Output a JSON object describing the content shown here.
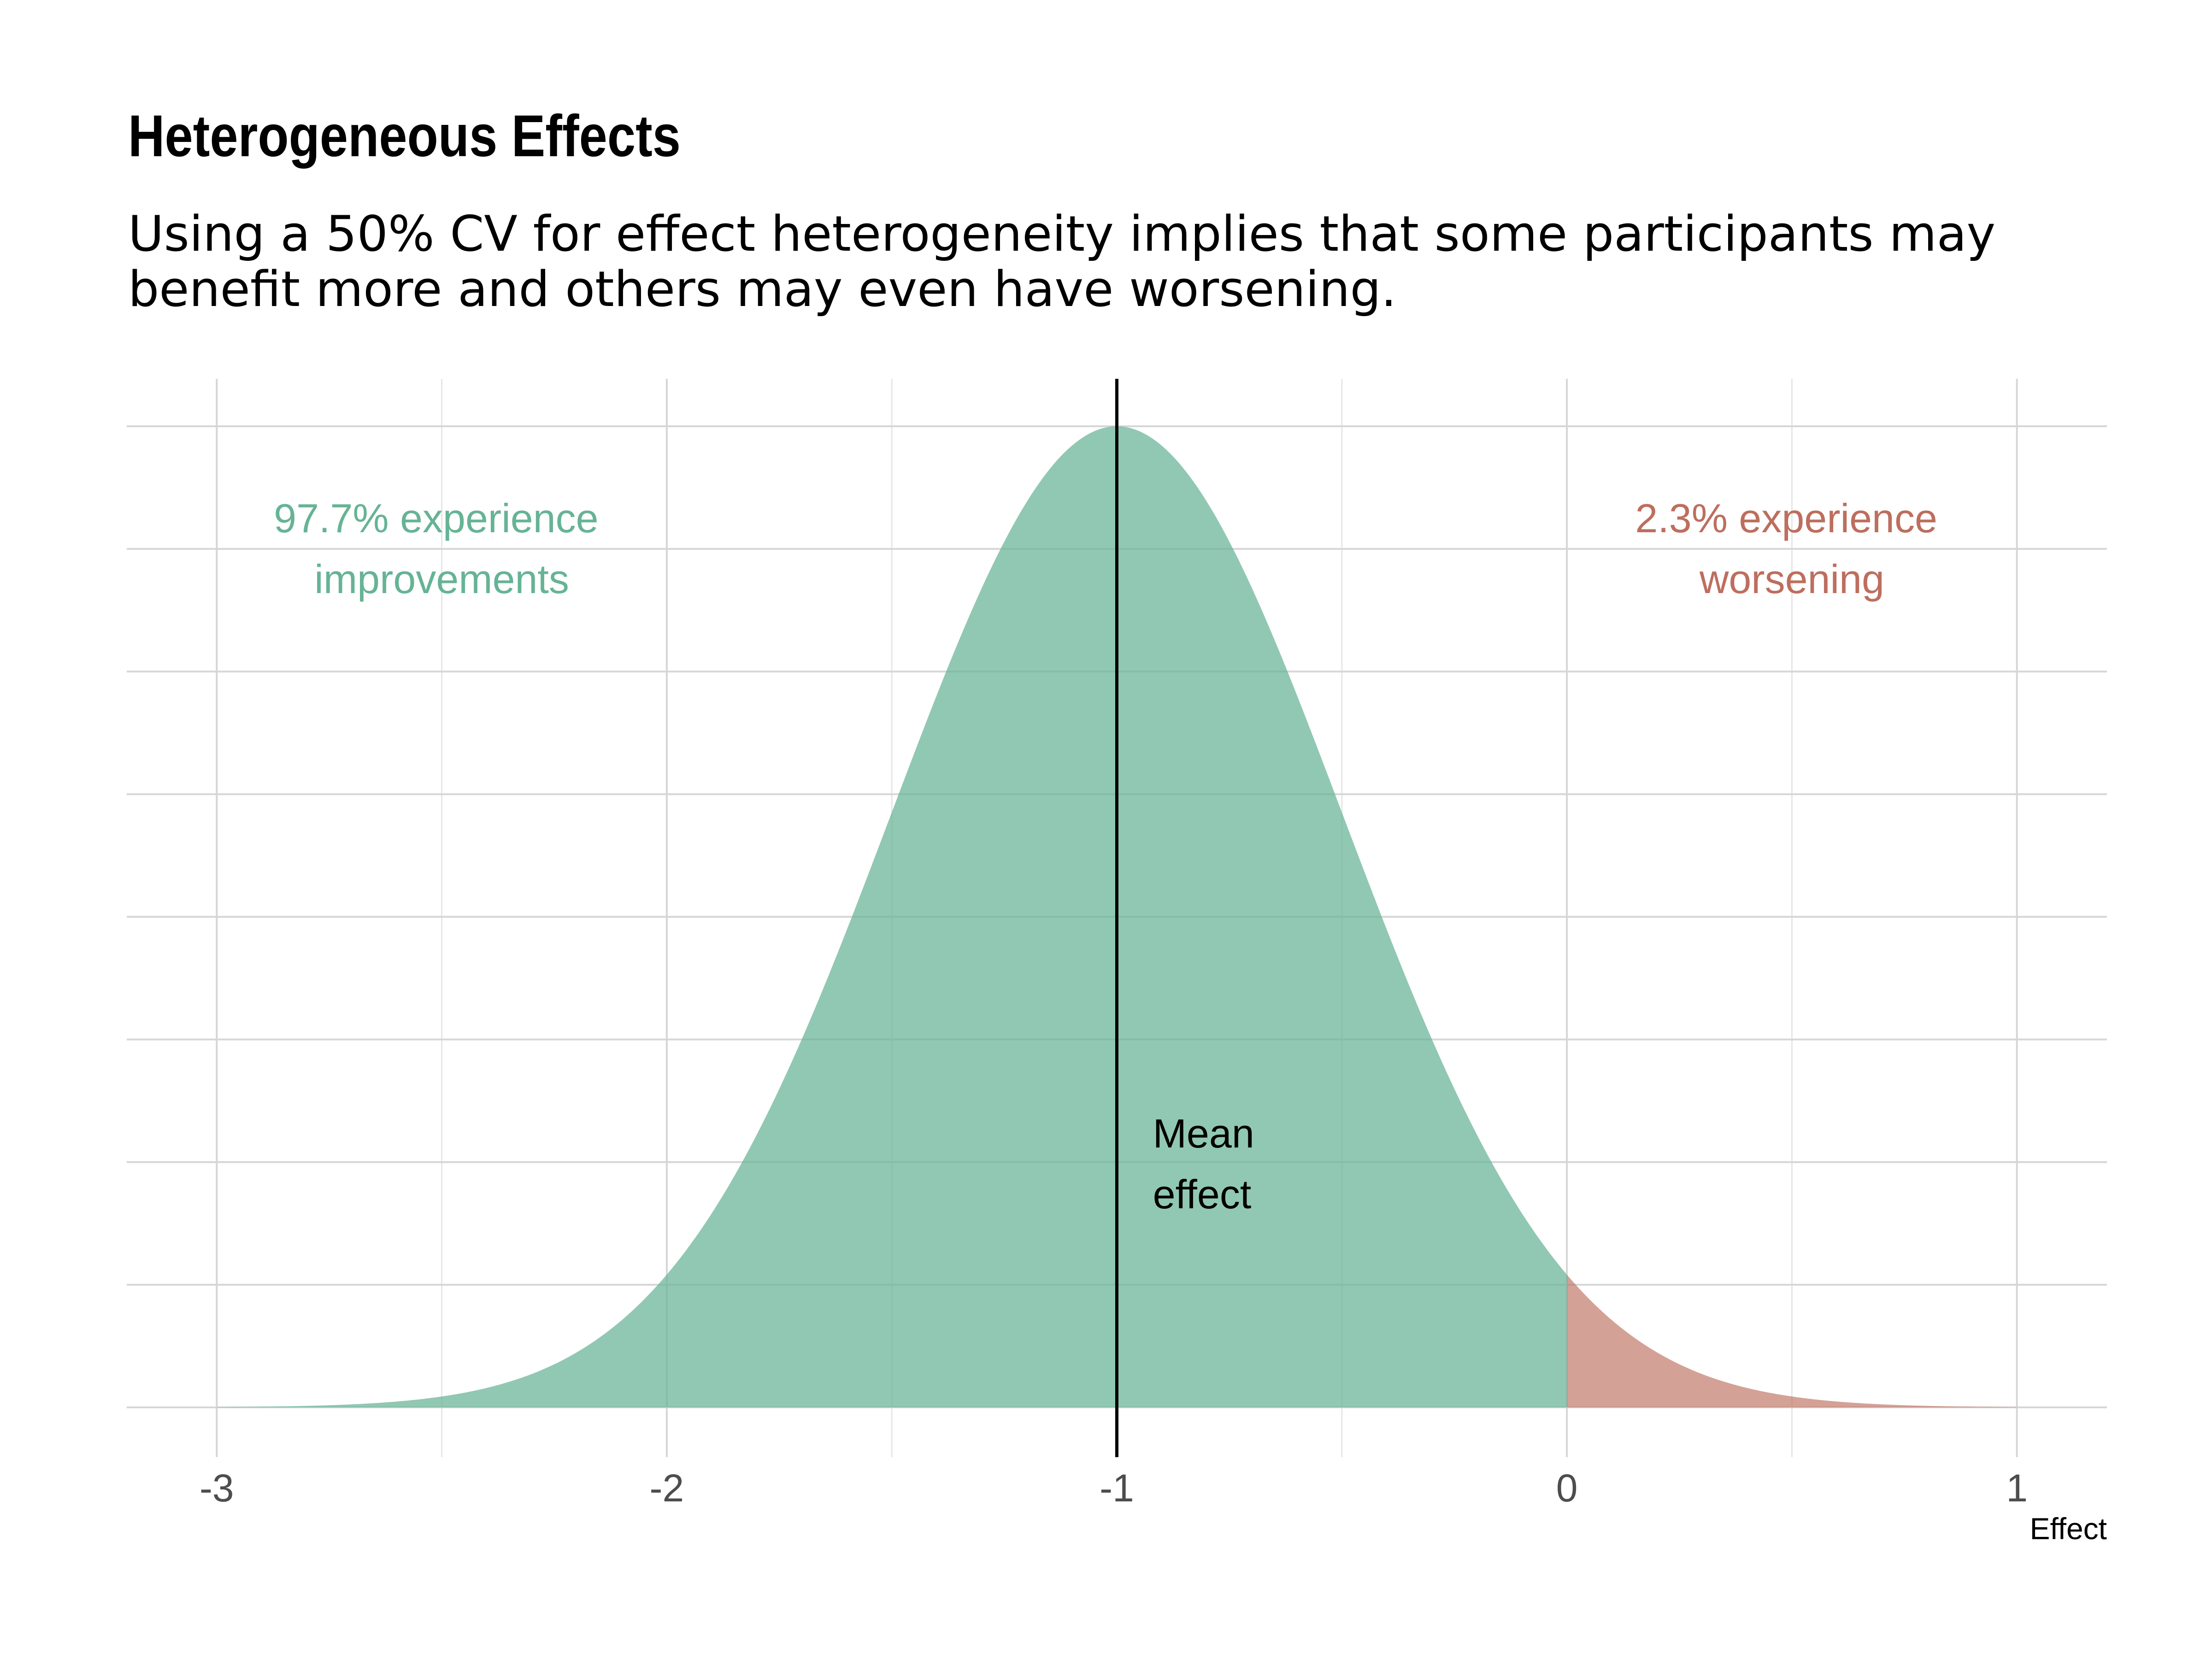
{
  "title": "Heterogeneous Effects",
  "subtitle": "Using a 50% CV for effect heterogeneity implies that some participants may benefit more and others may even have worsening.",
  "chart_data": {
    "type": "area",
    "distribution": "normal",
    "mean": -1,
    "sd": 0.5,
    "xlim": [
      -3.2,
      1.2
    ],
    "x_ticks": [
      -3,
      -2,
      -1,
      0,
      1
    ],
    "x_tick_labels": [
      "-3",
      "-2",
      "-1",
      "0",
      "1"
    ],
    "xlabel": "Effect",
    "ylabel": "",
    "y_tick_labels_shown": false,
    "grid": true,
    "series": [
      {
        "name": "improvements",
        "x_range": [
          -3,
          0
        ],
        "share_percent": 97.7,
        "color": "#66b395"
      },
      {
        "name": "worsening",
        "x_range": [
          0,
          1
        ],
        "share_percent": 2.3,
        "color": "#bd6e5e"
      }
    ],
    "vline": {
      "x": -1,
      "color": "#000000"
    },
    "annotations": [
      {
        "id": "improve",
        "text_lines": [
          "97.7% experience",
          "improvements"
        ],
        "x": -2.5,
        "color": "#66b395"
      },
      {
        "id": "worsen",
        "text_lines": [
          "2.3% experience",
          "worsening"
        ],
        "x": 0.5,
        "color": "#bd6e5e"
      },
      {
        "id": "mean",
        "text_lines": [
          "Mean",
          "effect"
        ],
        "x": -0.92,
        "color": "#000000"
      }
    ]
  }
}
